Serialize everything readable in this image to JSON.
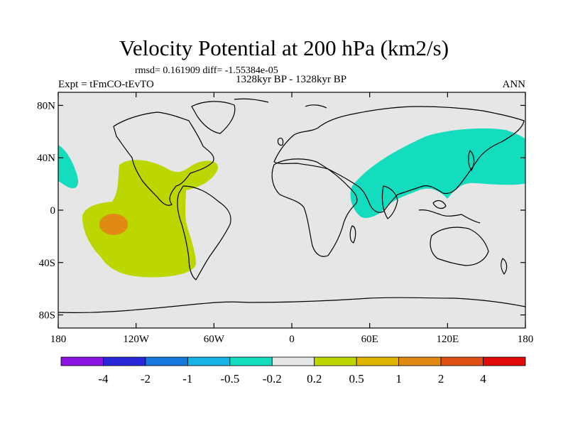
{
  "title": "Velocity Potential at 200 hPa (km2/s)",
  "stats": "rmsd= 0.161909 diff= -1.55384e-05",
  "experiment": "Expt = tFmCO-tEvTO",
  "period": "1328kyr BP - 1328kyr BP",
  "season": "ANN",
  "map": {
    "lat_ticks": [
      "80N",
      "40N",
      "0",
      "40S",
      "80S"
    ],
    "lat_values": [
      80,
      40,
      0,
      -40,
      -80
    ],
    "lon_ticks": [
      "180",
      "120W",
      "60W",
      "0",
      "60E",
      "120E",
      "180"
    ],
    "lon_values": [
      -180,
      -120,
      -60,
      0,
      60,
      120,
      180
    ],
    "background_color": "#e6e6e6"
  },
  "colorbar": {
    "colors": [
      "#8a14e0",
      "#2828d8",
      "#1478dc",
      "#14b4e6",
      "#14dcbe",
      "#e6e6e6",
      "#bcd600",
      "#e0b400",
      "#e08a14",
      "#e05014",
      "#e00a0a"
    ],
    "labels": [
      "-4",
      "-2",
      "-1",
      "-0.5",
      "-0.2",
      "0.2",
      "0.5",
      "1",
      "2",
      "4"
    ]
  },
  "legend_colors": {
    "positive_0_2_to_0_5": "#bcd600",
    "positive_1_to_2": "#e08a14",
    "negative_0_5_to_0_2": "#14dcbe"
  }
}
